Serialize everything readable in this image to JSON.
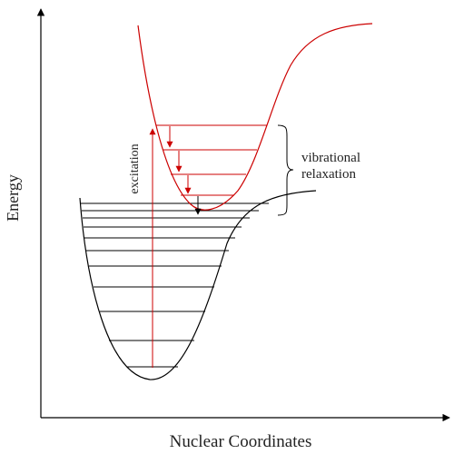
{
  "axes": {
    "y_label": "Energy",
    "x_label": "Nuclear Coordinates"
  },
  "annotations": {
    "excitation": "excitation",
    "relaxation_line1": "vibrational",
    "relaxation_line2": "relaxation"
  },
  "colors": {
    "ground_state": "#000000",
    "excited_state": "#cc0000",
    "axis": "#000000",
    "background": "#ffffff"
  }
}
